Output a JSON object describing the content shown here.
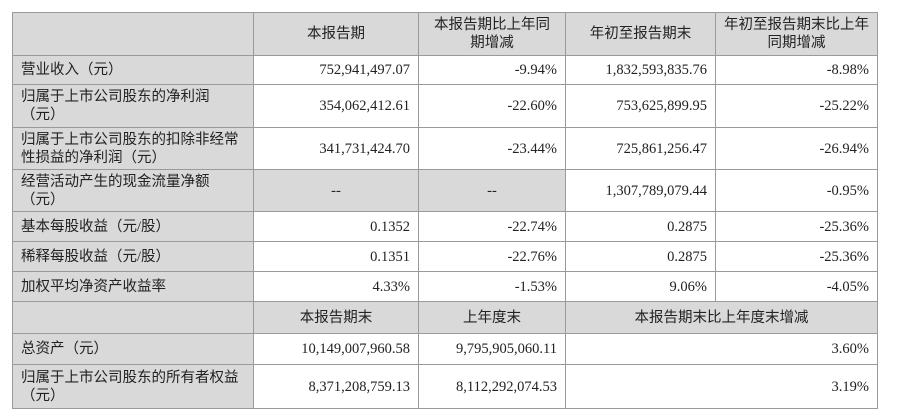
{
  "header1": [
    "",
    "本报告期",
    "本报告期比上年同期增减",
    "年初至报告期末",
    "年初至报告期末比上年同期增减"
  ],
  "rows1": [
    {
      "label": "营业收入（元）",
      "values": [
        "752,941,497.07",
        "-9.94%",
        "1,832,593,835.76",
        "-8.98%"
      ]
    },
    {
      "label": "归属于上市公司股东的净利润（元）",
      "values": [
        "354,062,412.61",
        "-22.60%",
        "753,625,899.95",
        "-25.22%"
      ]
    },
    {
      "label": "归属于上市公司股东的扣除非经常性损益的净利润（元）",
      "values": [
        "341,731,424.70",
        "-23.44%",
        "725,861,256.47",
        "-26.94%"
      ]
    },
    {
      "label": "经营活动产生的现金流量净额（元）",
      "values": [
        "--",
        "--",
        "1,307,789,079.44",
        "-0.95%"
      ]
    },
    {
      "label": "基本每股收益（元/股）",
      "values": [
        "0.1352",
        "-22.74%",
        "0.2875",
        "-25.36%"
      ]
    },
    {
      "label": "稀释每股收益（元/股）",
      "values": [
        "0.1351",
        "-22.76%",
        "0.2875",
        "-25.36%"
      ]
    },
    {
      "label": "加权平均净资产收益率",
      "values": [
        "4.33%",
        "-1.53%",
        "9.06%",
        "-4.05%"
      ]
    }
  ],
  "header2": [
    "",
    "本报告期末",
    "上年度末",
    "本报告期末比上年度末增减"
  ],
  "rows2": [
    {
      "label": "总资产（元）",
      "values": [
        "10,149,007,960.58",
        "9,795,905,060.11",
        "3.60%"
      ]
    },
    {
      "label": "归属于上市公司股东的所有者权益（元）",
      "values": [
        "8,371,208,759.13",
        "8,112,292,074.53",
        "3.19%"
      ]
    }
  ],
  "colors": {
    "header_fill": "#d9d9d9",
    "border": "#9a9a9a"
  }
}
